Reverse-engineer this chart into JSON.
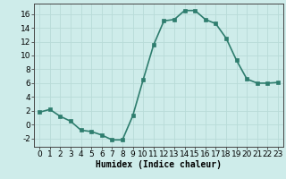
{
  "x": [
    0,
    1,
    2,
    3,
    4,
    5,
    6,
    7,
    8,
    9,
    10,
    11,
    12,
    13,
    14,
    15,
    16,
    17,
    18,
    19,
    20,
    21,
    22,
    23
  ],
  "y": [
    1.8,
    2.2,
    1.2,
    0.5,
    -0.8,
    -1.0,
    -1.5,
    -2.2,
    -2.2,
    1.3,
    6.5,
    11.5,
    15.0,
    15.2,
    16.5,
    16.5,
    15.2,
    14.6,
    12.5,
    9.3,
    6.6,
    6.0,
    6.0,
    6.1
  ],
  "line_color": "#2e7d6e",
  "marker_color": "#2e7d6e",
  "bg_color": "#ceecea",
  "grid_color": "#b8dbd8",
  "xlabel": "Humidex (Indice chaleur)",
  "xlim": [
    -0.5,
    23.5
  ],
  "ylim": [
    -3.2,
    17.5
  ],
  "yticks": [
    -2,
    0,
    2,
    4,
    6,
    8,
    10,
    12,
    14,
    16
  ],
  "xticks": [
    0,
    1,
    2,
    3,
    4,
    5,
    6,
    7,
    8,
    9,
    10,
    11,
    12,
    13,
    14,
    15,
    16,
    17,
    18,
    19,
    20,
    21,
    22,
    23
  ],
  "xlabel_fontsize": 7,
  "tick_fontsize": 6.5,
  "linewidth": 1.2,
  "markersize": 2.5
}
